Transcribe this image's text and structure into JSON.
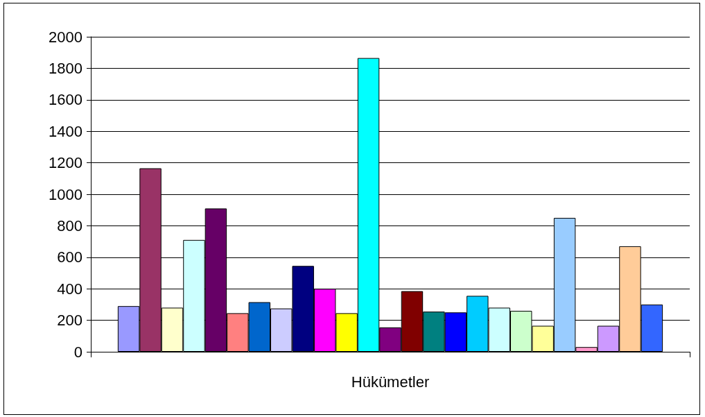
{
  "chart_data": {
    "type": "bar",
    "categories": [
      "Hükümetler"
    ],
    "series": [
      {
        "color": "#9999ff",
        "values": [
          290
        ]
      },
      {
        "color": "#993366",
        "values": [
          1165
        ]
      },
      {
        "color": "#ffffcc",
        "values": [
          280
        ]
      },
      {
        "color": "#ccffff",
        "values": [
          710
        ]
      },
      {
        "color": "#660066",
        "values": [
          910
        ]
      },
      {
        "color": "#ff8080",
        "values": [
          245
        ]
      },
      {
        "color": "#0066cc",
        "values": [
          315
        ]
      },
      {
        "color": "#ccccff",
        "values": [
          275
        ]
      },
      {
        "color": "#000080",
        "values": [
          545
        ]
      },
      {
        "color": "#ff00ff",
        "values": [
          400
        ]
      },
      {
        "color": "#ffff00",
        "values": [
          245
        ]
      },
      {
        "color": "#00ffff",
        "values": [
          1865
        ]
      },
      {
        "color": "#800080",
        "values": [
          155
        ]
      },
      {
        "color": "#800000",
        "values": [
          385
        ]
      },
      {
        "color": "#008080",
        "values": [
          255
        ]
      },
      {
        "color": "#0000ff",
        "values": [
          250
        ]
      },
      {
        "color": "#00ccff",
        "values": [
          355
        ]
      },
      {
        "color": "#ccffff",
        "values": [
          280
        ]
      },
      {
        "color": "#ccffcc",
        "values": [
          260
        ]
      },
      {
        "color": "#ffff99",
        "values": [
          165
        ]
      },
      {
        "color": "#99ccff",
        "values": [
          850
        ]
      },
      {
        "color": "#ff99cc",
        "values": [
          30
        ]
      },
      {
        "color": "#cc99ff",
        "values": [
          165
        ]
      },
      {
        "color": "#ffcc99",
        "values": [
          670
        ]
      },
      {
        "color": "#3366ff",
        "values": [
          300
        ]
      }
    ],
    "ylim": [
      0,
      2000
    ],
    "yticks": [
      0,
      200,
      400,
      600,
      800,
      1000,
      1200,
      1400,
      1600,
      1800,
      2000
    ],
    "grid": "y"
  }
}
